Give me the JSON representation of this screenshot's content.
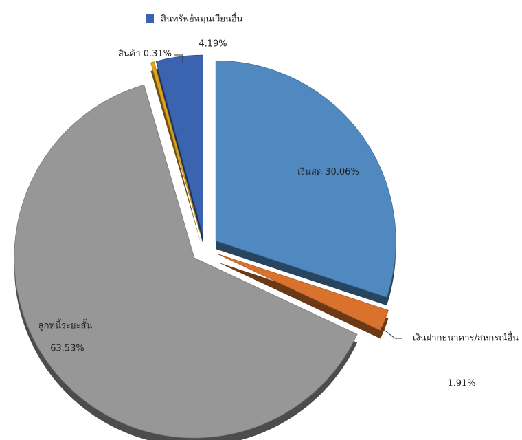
{
  "chart_data": {
    "type": "pie",
    "categories": [
      "เงินสด",
      "เงินฝากธนาคาร/สหกรณ์อื่น",
      "ลูกหนี้ระยะสั้น",
      "สินค้า",
      "สินทรัพย์หมุนเวียนอื่น"
    ],
    "values": [
      30.06,
      1.91,
      63.53,
      0.31,
      4.19
    ],
    "value_labels": [
      "30.06%",
      "1.91%",
      "63.53%",
      "0.31%",
      "4.19%"
    ],
    "colors": [
      "#5089c0",
      "#d8722c",
      "#979797",
      "#e0a41a",
      "#3a64b0"
    ]
  }
}
